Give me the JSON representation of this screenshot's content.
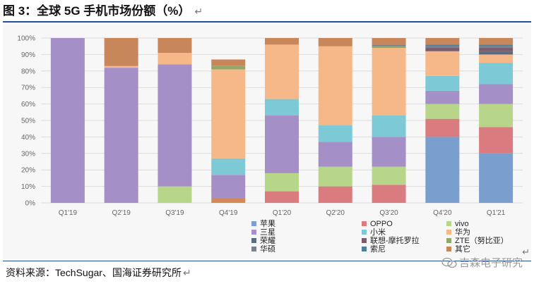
{
  "title": "图 3：全球 5G 手机市场份额（%）",
  "return_glyph": "↵",
  "source": "资料来源：TechSugar、国海证券研究所",
  "watermark": "吉森电子研究",
  "colors": {
    "accent": "#1f4e9a",
    "background": "#f7f7f7",
    "grid": "#dcdcdc"
  },
  "chart_data": {
    "type": "bar",
    "stacked": true,
    "categories": [
      "Q1'19",
      "Q2'19",
      "Q3'19",
      "Q4'19",
      "Q1'20",
      "Q2'20",
      "Q3'20",
      "Q4'20",
      "Q1'21"
    ],
    "ylim": [
      0,
      100
    ],
    "yticks": [
      "0%",
      "10%",
      "20%",
      "30%",
      "40%",
      "50%",
      "60%",
      "70%",
      "80%",
      "90%",
      "100%"
    ],
    "grid": true,
    "legend_position": "bottom",
    "series": [
      {
        "name": "苹果",
        "color": "#7a9fcf",
        "values": [
          0,
          0,
          0,
          0,
          0,
          0,
          0,
          40,
          30
        ]
      },
      {
        "name": "OPPO",
        "color": "#d97b7f",
        "values": [
          0,
          0,
          0,
          0,
          7,
          10,
          11,
          11,
          16
        ]
      },
      {
        "name": "vivo",
        "color": "#b8d68a",
        "values": [
          0,
          0,
          10,
          0,
          11,
          12,
          11,
          9,
          14
        ]
      },
      {
        "name": "三星",
        "color": "#a48fc7",
        "values": [
          100,
          82,
          74,
          14,
          35,
          15,
          18,
          8,
          12
        ]
      },
      {
        "name": "小米",
        "color": "#7dcad6",
        "values": [
          0,
          0,
          0,
          10,
          10,
          10,
          13,
          9,
          13
        ]
      },
      {
        "name": "华为",
        "color": "#f6b889",
        "values": [
          0,
          1,
          7,
          54,
          33,
          48,
          41,
          15,
          5
        ]
      },
      {
        "name": "荣耀",
        "color": "#5c6b7d",
        "values": [
          0,
          0,
          0,
          0,
          0,
          0,
          0,
          0,
          2
        ]
      },
      {
        "name": "联想-摩托罗拉",
        "color": "#7a5c6b",
        "values": [
          0,
          0,
          0,
          0,
          0,
          0,
          0,
          2,
          2
        ]
      },
      {
        "name": "ZTE（努比亚）",
        "color": "#90a86a",
        "values": [
          0,
          0,
          0,
          2,
          0,
          0,
          1,
          0,
          0
        ]
      },
      {
        "name": "华硕",
        "color": "#77808c",
        "values": [
          0,
          0,
          0,
          0,
          0,
          0,
          1,
          1,
          1
        ]
      },
      {
        "name": "索尼",
        "color": "#4f7d9a",
        "values": [
          0,
          0,
          0,
          0,
          0,
          0,
          0,
          1,
          1
        ]
      },
      {
        "name": "其它",
        "color": "#c8875a",
        "values": [
          0,
          17,
          9,
          4,
          4,
          5,
          4,
          4,
          4
        ]
      }
    ],
    "bottom_segment": {
      "name": "",
      "color": "#d58a56",
      "values": [
        0,
        0,
        0,
        3,
        0,
        0,
        0,
        0,
        0
      ]
    }
  }
}
